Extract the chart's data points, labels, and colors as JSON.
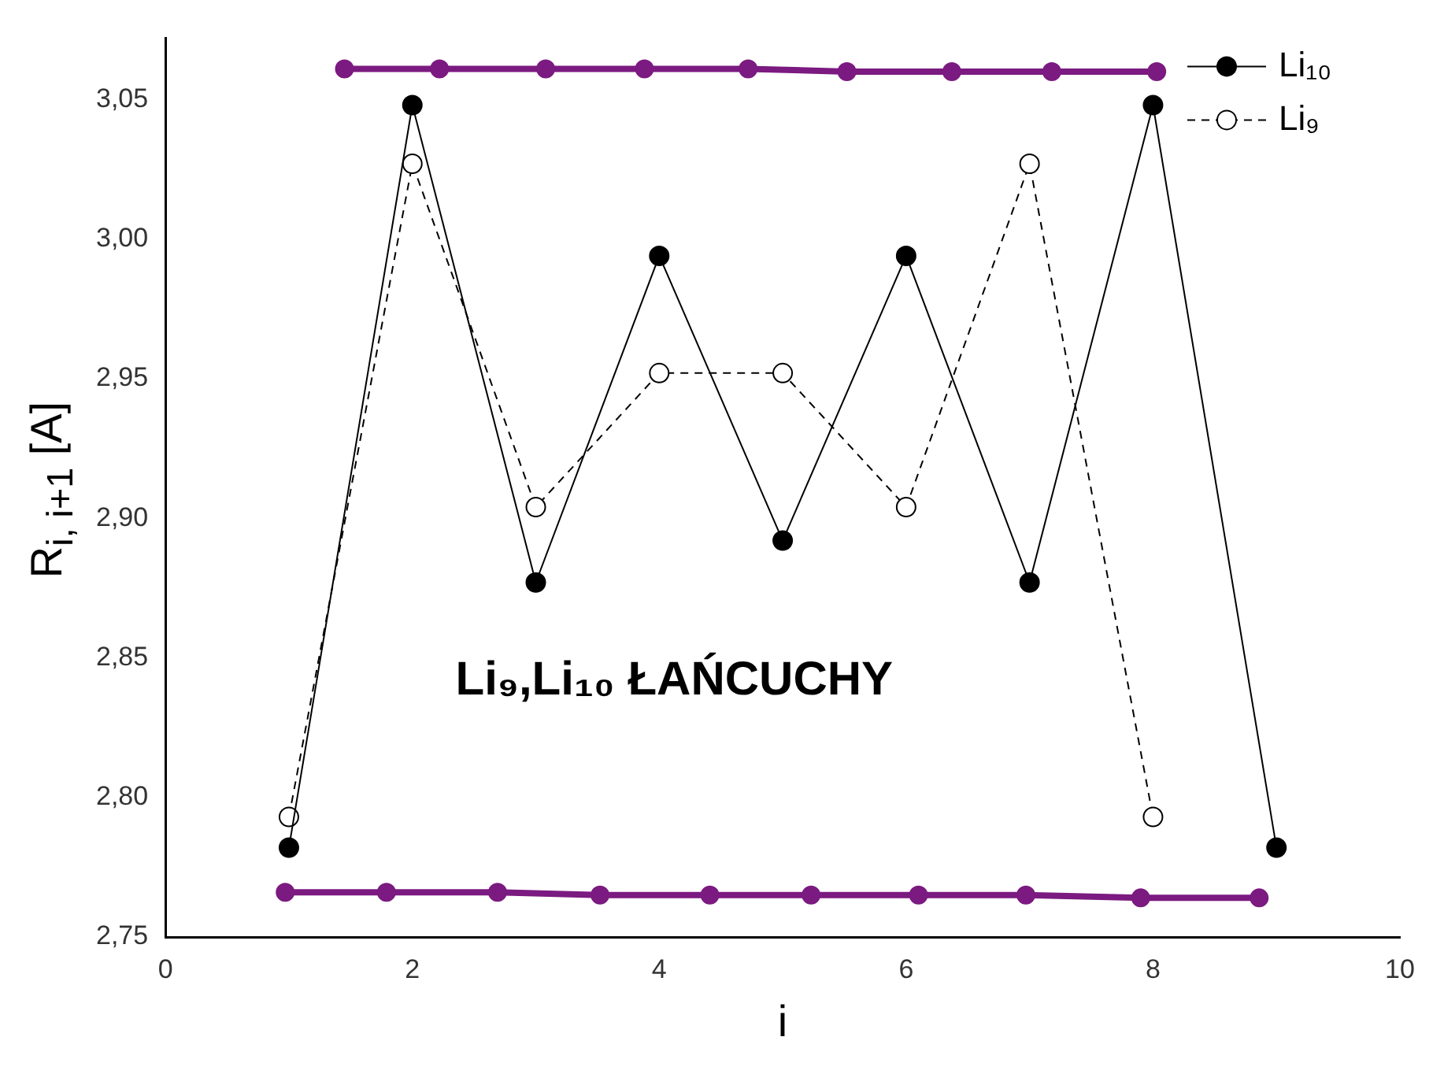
{
  "chart_data": {
    "type": "line",
    "xlabel": "i",
    "ylabel": "R$_{i, i+1}$ [A]",
    "annotations": [
      "Li₉,Li₁₀ ŁAŃCUCHY"
    ],
    "xlim": [
      0,
      10
    ],
    "xticks": [
      0,
      2,
      4,
      6,
      8,
      10
    ],
    "ylim": [
      2.75,
      3.072
    ],
    "yticks": [
      {
        "value": 2.75,
        "label": "2,75"
      },
      {
        "value": 2.8,
        "label": "2,80"
      },
      {
        "value": 2.85,
        "label": "2,85"
      },
      {
        "value": 2.9,
        "label": "2,90"
      },
      {
        "value": 2.95,
        "label": "2,95"
      },
      {
        "value": 3.0,
        "label": "3,00"
      },
      {
        "value": 3.05,
        "label": "3,05"
      }
    ],
    "grid": false,
    "legend": "top right",
    "marker": "circle",
    "series": [
      {
        "name": "Li₁₀",
        "color": "#000000",
        "line_style": "solid",
        "x": [
          1,
          2,
          3,
          4,
          5,
          6,
          7,
          8,
          9
        ],
        "values": [
          2.782,
          3.048,
          2.877,
          2.994,
          2.892,
          2.994,
          2.877,
          3.048,
          2.782
        ]
      },
      {
        "name": "Li₉",
        "color": "#000000",
        "line_style": "dashed",
        "x": [
          1,
          2,
          3,
          4,
          5,
          6,
          7,
          8
        ],
        "values": [
          2.793,
          3.027,
          2.904,
          2.952,
          2.952,
          2.904,
          3.027,
          2.793
        ]
      },
      {
        "color": "#7b1a80",
        "line_style": "solid",
        "x": [
          1.45,
          2.22,
          3.08,
          3.88,
          4.72,
          5.52,
          6.37,
          7.18,
          8.03
        ],
        "values": [
          3.061,
          3.061,
          3.061,
          3.061,
          3.061,
          3.06,
          3.06,
          3.06,
          3.06
        ]
      },
      {
        "color": "#7b1a80",
        "line_style": "solid",
        "x": [
          0.97,
          1.79,
          2.69,
          3.52,
          4.41,
          5.23,
          6.1,
          6.97,
          7.9,
          8.86
        ],
        "values": [
          2.766,
          2.766,
          2.766,
          2.765,
          2.765,
          2.765,
          2.765,
          2.765,
          2.764,
          2.764
        ]
      }
    ]
  }
}
